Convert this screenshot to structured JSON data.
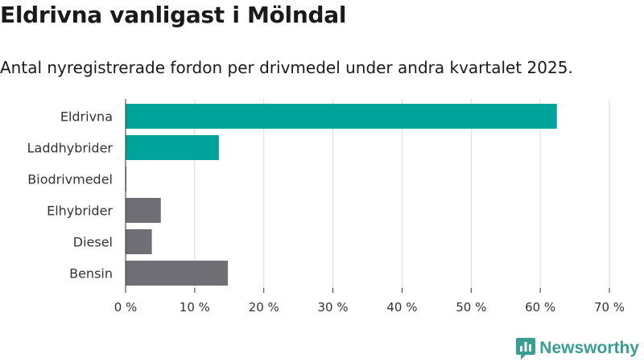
{
  "title": "Eldrivna vanligast i Mölndal",
  "subtitle": "Antal nyregistrerade fordon per drivmedel under andra kvartalet 2025.",
  "logo_text": "Newsworthy",
  "colors": {
    "highlight": "#00a39a",
    "default": "#6f6f75",
    "grid": "#d9d9d9",
    "axis": "#333333",
    "logo": "#3a9d93"
  },
  "chart_data": {
    "type": "bar",
    "orientation": "horizontal",
    "title": "Eldrivna vanligast i Mölndal",
    "subtitle": "Antal nyregistrerade fordon per drivmedel under andra kvartalet 2025.",
    "categories": [
      "Eldrivna",
      "Laddhybrider",
      "Biodrivmedel",
      "Elhybrider",
      "Diesel",
      "Bensin"
    ],
    "values": [
      62.4,
      13.5,
      0.1,
      5.1,
      3.8,
      14.8
    ],
    "highlighted": [
      true,
      true,
      false,
      false,
      false,
      false
    ],
    "xlim": [
      0,
      70
    ],
    "xticks": [
      0,
      10,
      20,
      30,
      40,
      50,
      60,
      70
    ],
    "tick_labels": [
      "0 %",
      "10 %",
      "20 %",
      "30 %",
      "40 %",
      "50 %",
      "60 %",
      "70 %"
    ],
    "grid": true,
    "xlabel": "",
    "ylabel": ""
  }
}
